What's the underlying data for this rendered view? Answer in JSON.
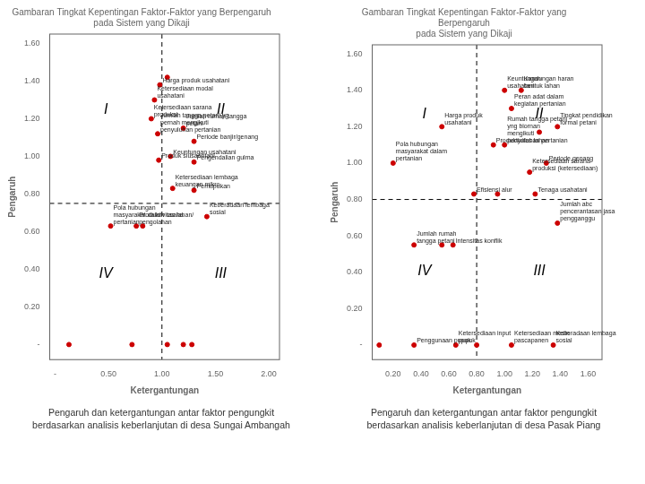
{
  "chart_data": [
    {
      "type": "scatter",
      "title": "Gambaran Tingkat Kepentingan Faktor-Faktor yang Berpengaruh\npada Sistem yang Dikaji",
      "x_label": "Ketergantungan",
      "y_label": "Pengaruh",
      "caption": "Pengaruh dan ketergantungan antar faktor pengungkit\nberdasarkan analisis keberlanjutan di desa Sungai Ambangah",
      "x": [
        0.13,
        0.72,
        1.05,
        1.2,
        1.28,
        0.97,
        0.9,
        0.98,
        0.93,
        0.96,
        1.05,
        1.08,
        1.2,
        1.3,
        1.3,
        1.1,
        1.3,
        1.42,
        0.52,
        0.76,
        0.82
      ],
      "values": [
        0,
        0,
        0,
        0,
        0,
        0.98,
        1.2,
        1.38,
        1.3,
        1.12,
        1.42,
        1.0,
        1.15,
        1.08,
        0.97,
        0.83,
        0.82,
        0.68,
        0.63,
        0.63,
        0.63
      ],
      "color": "#cc0000",
      "xlim": [
        -0.05,
        2.1
      ],
      "ylim": [
        -0.08,
        1.65
      ],
      "xticks": [
        {
          "value": 0,
          "label": "-"
        },
        {
          "value": 0.5,
          "label": "0.50"
        },
        {
          "value": 1.0,
          "label": "1.00"
        },
        {
          "value": 1.5,
          "label": "1.50"
        },
        {
          "value": 2.0,
          "label": "2.00"
        }
      ],
      "yticks": [
        {
          "value": 0,
          "label": "-"
        },
        {
          "value": 0.2,
          "label": "0.20"
        },
        {
          "value": 0.4,
          "label": "0.40"
        },
        {
          "value": 0.6,
          "label": "0.60"
        },
        {
          "value": 0.8,
          "label": "0.80"
        },
        {
          "value": 1.0,
          "label": "1.00"
        },
        {
          "value": 1.2,
          "label": "1.20"
        },
        {
          "value": 1.4,
          "label": "1.40"
        },
        {
          "value": 1.6,
          "label": "1.60"
        }
      ],
      "vline": 1.0,
      "hline": 0.75,
      "grid": false,
      "annotations": [
        {
          "x": 0.97,
          "y": 0.98,
          "text": "Produk siusaontani"
        },
        {
          "x": 0.9,
          "y": 1.2,
          "text": "Ketersediaan sarana\nproduksi"
        },
        {
          "x": 0.98,
          "y": 1.38,
          "text": "Harga produk usahatani"
        },
        {
          "x": 0.93,
          "y": 1.3,
          "text": "Ketersediaan modal\nusahatani"
        },
        {
          "x": 0.96,
          "y": 1.12,
          "text": "Jumlah tangga petani yg\npernah mengikuti\npenyuluhan pertanian"
        },
        {
          "x": 1.08,
          "y": 1.0,
          "text": "Keuntungan usahatani"
        },
        {
          "x": 1.2,
          "y": 1.15,
          "text": "Jumlah rumah tangga\npetani"
        },
        {
          "x": 1.3,
          "y": 1.08,
          "text": "Periode banjir/genang"
        },
        {
          "x": 1.3,
          "y": 0.97,
          "text": "Pengendalian gulma"
        },
        {
          "x": 1.1,
          "y": 0.83,
          "text": "Ketersediaan lembaga\nkeuangan mikro"
        },
        {
          "x": 1.3,
          "y": 0.82,
          "text": "Pemupukan"
        },
        {
          "x": 1.42,
          "y": 0.68,
          "text": "Keberadaan lembaga\nsosial"
        },
        {
          "x": 0.52,
          "y": 0.63,
          "text": "Pola hubungan\nmasyarakat dalam usaha\npertanian"
        },
        {
          "x": 0.76,
          "y": 0.63,
          "text": "Produktivitas lahan/\npengolahan"
        }
      ],
      "quadrant_labels": [
        {
          "x": 0.475,
          "y": 1.245,
          "text": "I"
        },
        {
          "x": 1.55,
          "y": 1.245,
          "text": "II"
        },
        {
          "x": 1.55,
          "y": 0.3765,
          "text": "III"
        },
        {
          "x": 0.475,
          "y": 0.3765,
          "text": "IV"
        }
      ]
    },
    {
      "type": "scatter",
      "title": "Gambaran Tingkat Kepentingan Faktor-Faktor yang\nBerpengaruh\npada Sistem yang Dikaji",
      "x_label": "Ketergantungan",
      "y_label": "Pengaruh",
      "caption": "Pengaruh dan ketergantungan antar faktor pengungkit\nberdasarkan analisis keberlanjutan di desa Pasak Piang",
      "x": [
        0.1,
        0.65,
        0.8,
        1.05,
        1.35,
        0.2,
        0.55,
        1.0,
        1.12,
        1.05,
        0.92,
        1.0,
        1.25,
        1.38,
        1.3,
        1.18,
        0.78,
        0.95,
        1.22,
        1.38,
        0.35,
        0.55,
        0.63,
        0.35
      ],
      "values": [
        0,
        0,
        0,
        0,
        0,
        1.0,
        1.2,
        1.4,
        1.4,
        1.3,
        1.1,
        1.1,
        1.17,
        1.2,
        1.0,
        0.95,
        0.83,
        0.83,
        0.83,
        0.67,
        0.55,
        0.55,
        0.55,
        0
      ],
      "color": "#cc0000",
      "xlim": [
        0.05,
        1.7
      ],
      "ylim": [
        -0.08,
        1.65
      ],
      "xticks": [
        {
          "value": 0.2,
          "label": "0.20"
        },
        {
          "value": 0.4,
          "label": "0.40"
        },
        {
          "value": 0.6,
          "label": "0.60"
        },
        {
          "value": 0.8,
          "label": "0.80"
        },
        {
          "value": 1.0,
          "label": "1.00"
        },
        {
          "value": 1.2,
          "label": "1.20"
        },
        {
          "value": 1.4,
          "label": "1.40"
        },
        {
          "value": 1.6,
          "label": "1.60"
        }
      ],
      "yticks": [
        {
          "value": 0,
          "label": "-"
        },
        {
          "value": 0.2,
          "label": "0.20"
        },
        {
          "value": 0.4,
          "label": "0.40"
        },
        {
          "value": 0.6,
          "label": "0.60"
        },
        {
          "value": 0.8,
          "label": "0.80"
        },
        {
          "value": 1.0,
          "label": "1.00"
        },
        {
          "value": 1.2,
          "label": "1.20"
        },
        {
          "value": 1.4,
          "label": "1.40"
        },
        {
          "value": 1.6,
          "label": "1.60"
        }
      ],
      "vline": 0.8,
      "hline": 0.8,
      "grid": false,
      "annotations": [
        {
          "x": 0.65,
          "y": 0,
          "text": "Ketersediaan input\npupuk"
        },
        {
          "x": 1.05,
          "y": 0,
          "text": "Ketersediaan mesin\npascapanen"
        },
        {
          "x": 1.35,
          "y": 0,
          "text": "Keberadaan lembaga\nsosial"
        },
        {
          "x": 0.2,
          "y": 1.0,
          "text": "Pola hubungan\nmasyarakat dalam\npertanian"
        },
        {
          "x": 0.55,
          "y": 1.2,
          "text": "Harga produk\nusahatani"
        },
        {
          "x": 1.0,
          "y": 1.4,
          "text": "Keuntungan\nusahatani"
        },
        {
          "x": 1.12,
          "y": 1.4,
          "text": "Kandungan haran\nbentuk lahan"
        },
        {
          "x": 1.05,
          "y": 1.3,
          "text": "Peran adat dalam\nkegiatan pertanian"
        },
        {
          "x": 0.92,
          "y": 1.1,
          "text": "Produktivitas lahan"
        },
        {
          "x": 1.0,
          "y": 1.1,
          "text": "Rumah tangga petani\nyng biornan\nmengikuti\npenyuluhan pertanian"
        },
        {
          "x": 1.38,
          "y": 1.2,
          "text": "Tingkat pendidikan\nformal petani"
        },
        {
          "x": 1.3,
          "y": 1.0,
          "text": "Periode genang"
        },
        {
          "x": 1.18,
          "y": 0.95,
          "text": "Ketersediaan sarana\nproduksi (ketersediaan)"
        },
        {
          "x": 0.78,
          "y": 0.83,
          "text": "Efisiensi alur"
        },
        {
          "x": 1.22,
          "y": 0.83,
          "text": "Tenaga usahatani"
        },
        {
          "x": 1.38,
          "y": 0.67,
          "text": "Jumlah abc\npencerantasan jasa\npengganggu"
        },
        {
          "x": 0.35,
          "y": 0.55,
          "text": "Jumlah rumah\ntangga petani"
        },
        {
          "x": 0.63,
          "y": 0.55,
          "text": "Intensitas konflik"
        },
        {
          "x": 0.35,
          "y": 0,
          "text": "Penggunaan pupuk"
        }
      ],
      "quadrant_labels": [
        {
          "x": 0.425,
          "y": 1.2675,
          "text": "I"
        },
        {
          "x": 1.25,
          "y": 1.2675,
          "text": "II"
        },
        {
          "x": 1.25,
          "y": 0.404,
          "text": "III"
        },
        {
          "x": 0.425,
          "y": 0.404,
          "text": "IV"
        }
      ]
    }
  ]
}
